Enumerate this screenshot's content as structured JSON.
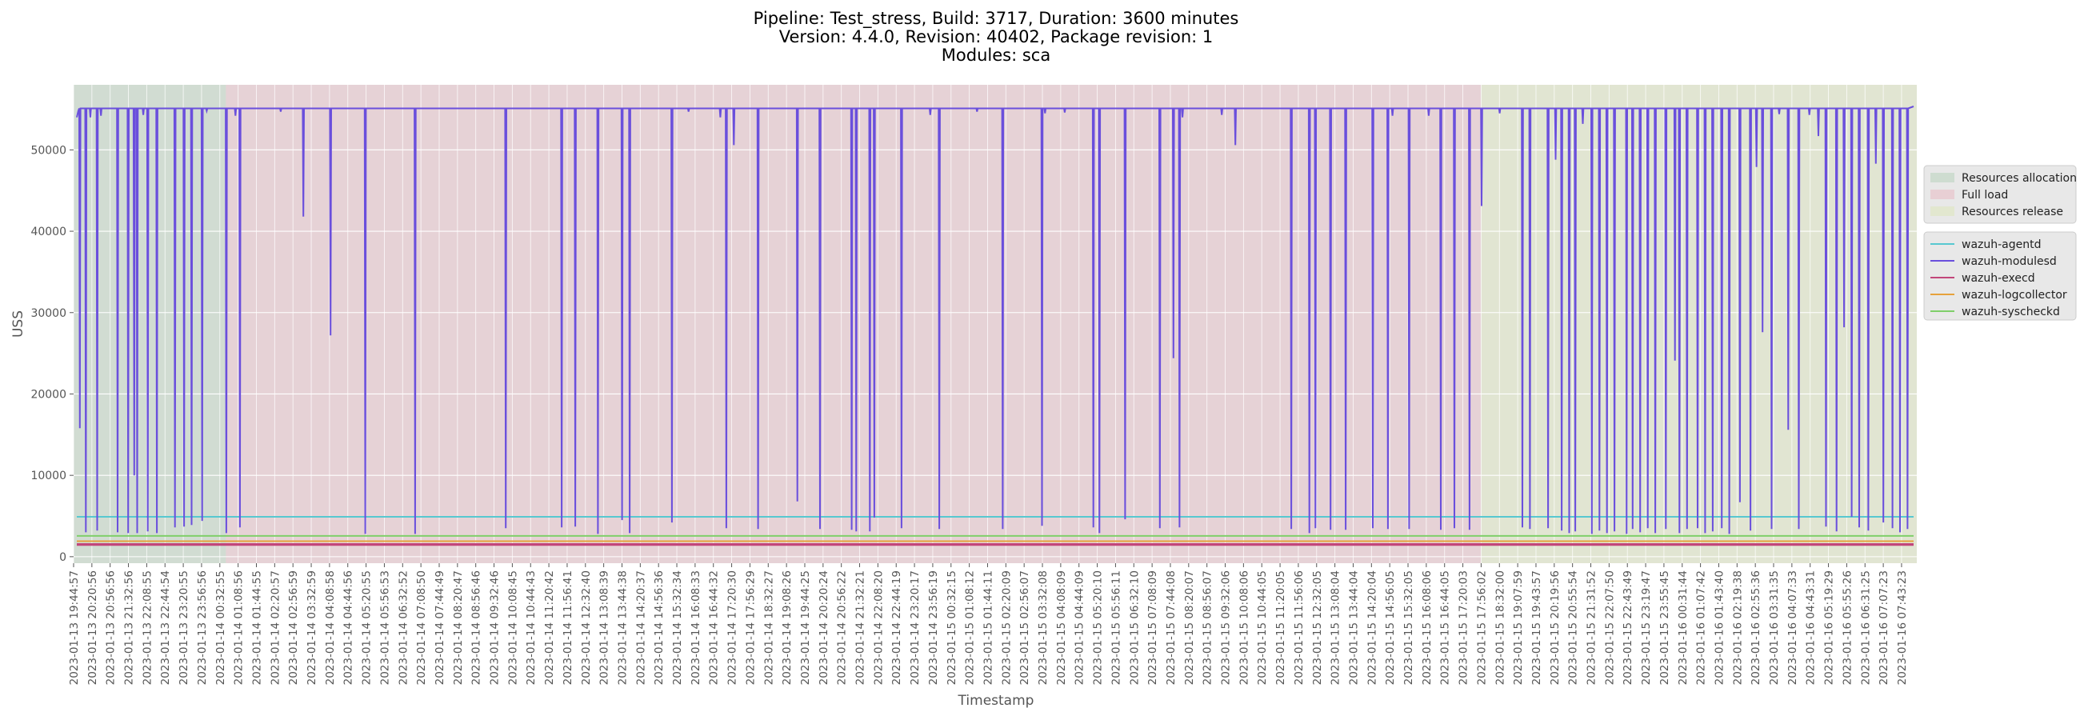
{
  "chart_data": {
    "type": "line",
    "title_lines": [
      "Pipeline: Test_stress, Build: 3717, Duration: 3600 minutes",
      "Version: 4.4.0, Revision: 40402, Package revision: 1",
      "Modules: sca"
    ],
    "xlabel": "Timestamp",
    "ylabel": "USS",
    "ylim": [
      -800,
      58000
    ],
    "yticks": [
      0,
      10000,
      20000,
      30000,
      40000,
      50000
    ],
    "grid": true,
    "legend_position": "right-outside",
    "x_tick_labels": [
      "2023-01-13 19:44:57",
      "2023-01-13 20:20:56",
      "2023-01-13 20:56:56",
      "2023-01-13 21:32:56",
      "2023-01-13 22:08:55",
      "2023-01-13 22:44:54",
      "2023-01-13 23:20:55",
      "2023-01-13 23:56:56",
      "2023-01-14 00:32:55",
      "2023-01-14 01:08:56",
      "2023-01-14 01:44:55",
      "2023-01-14 02:20:57",
      "2023-01-14 02:56:59",
      "2023-01-14 03:32:59",
      "2023-01-14 04:08:58",
      "2023-01-14 04:44:56",
      "2023-01-14 05:20:55",
      "2023-01-14 05:56:53",
      "2023-01-14 06:32:52",
      "2023-01-14 07:08:50",
      "2023-01-14 07:44:49",
      "2023-01-14 08:20:47",
      "2023-01-14 08:56:46",
      "2023-01-14 09:32:46",
      "2023-01-14 10:08:45",
      "2023-01-14 10:44:43",
      "2023-01-14 11:20:42",
      "2023-01-14 11:56:41",
      "2023-01-14 12:32:40",
      "2023-01-14 13:08:39",
      "2023-01-14 13:44:38",
      "2023-01-14 14:20:37",
      "2023-01-14 14:56:36",
      "2023-01-14 15:32:34",
      "2023-01-14 16:08:33",
      "2023-01-14 16:44:32",
      "2023-01-14 17:20:30",
      "2023-01-14 17:56:29",
      "2023-01-14 18:32:27",
      "2023-01-14 19:08:26",
      "2023-01-14 19:44:25",
      "2023-01-14 20:20:24",
      "2023-01-14 20:56:22",
      "2023-01-14 21:32:21",
      "2023-01-14 22:08:20",
      "2023-01-14 22:44:19",
      "2023-01-14 23:20:17",
      "2023-01-14 23:56:19",
      "2023-01-15 00:32:15",
      "2023-01-15 01:08:12",
      "2023-01-15 01:44:11",
      "2023-01-15 02:20:09",
      "2023-01-15 02:56:07",
      "2023-01-15 03:32:08",
      "2023-01-15 04:08:09",
      "2023-01-15 04:44:09",
      "2023-01-15 05:20:10",
      "2023-01-15 05:56:11",
      "2023-01-15 06:32:10",
      "2023-01-15 07:08:09",
      "2023-01-15 07:44:08",
      "2023-01-15 08:20:07",
      "2023-01-15 08:56:07",
      "2023-01-15 09:32:06",
      "2023-01-15 10:08:06",
      "2023-01-15 10:44:05",
      "2023-01-15 11:20:05",
      "2023-01-15 11:56:06",
      "2023-01-15 12:32:05",
      "2023-01-15 13:08:04",
      "2023-01-15 13:44:04",
      "2023-01-15 14:20:04",
      "2023-01-15 14:56:05",
      "2023-01-15 15:32:05",
      "2023-01-15 16:08:06",
      "2023-01-15 16:44:05",
      "2023-01-15 17:20:03",
      "2023-01-15 17:56:02",
      "2023-01-15 18:32:00",
      "2023-01-15 19:07:59",
      "2023-01-15 19:43:57",
      "2023-01-15 20:19:56",
      "2023-01-15 20:55:54",
      "2023-01-15 21:31:52",
      "2023-01-15 22:07:50",
      "2023-01-15 22:43:49",
      "2023-01-15 23:19:47",
      "2023-01-15 23:55:45",
      "2023-01-16 00:31:44",
      "2023-01-16 01:07:42",
      "2023-01-16 01:43:40",
      "2023-01-16 02:19:38",
      "2023-01-16 02:55:36",
      "2023-01-16 03:31:35",
      "2023-01-16 04:07:33",
      "2023-01-16 04:43:31",
      "2023-01-16 05:19:29",
      "2023-01-16 05:55:26",
      "2023-01-16 06:31:25",
      "2023-01-16 07:07:23",
      "2023-01-16 07:43:23"
    ],
    "phases": [
      {
        "name": "Resources allocation",
        "start_index": 0,
        "end_index": 10,
        "color": "#9fc5a3"
      },
      {
        "name": "Full load",
        "start_index": 10,
        "end_index": 80,
        "color": "#e8a0b0"
      },
      {
        "name": "Resources release",
        "start_index": 80,
        "end_index": 100,
        "color": "#d8e6a0"
      }
    ],
    "series": [
      {
        "name": "wazuh-agentd",
        "color": "#57c8d0",
        "baseline": 4900
      },
      {
        "name": "wazuh-modulesd",
        "color": "#6a4fdc",
        "baseline": 55100,
        "dips": [
          {
            "x": 0.2,
            "y": 15800
          },
          {
            "x": 0.6,
            "y": 3000
          },
          {
            "x": 0.9,
            "y": 54000
          },
          {
            "x": 1.35,
            "y": 3200
          },
          {
            "x": 1.6,
            "y": 54200
          },
          {
            "x": 2.7,
            "y": 3000
          },
          {
            "x": 3.4,
            "y": 2900
          },
          {
            "x": 3.8,
            "y": 10000
          },
          {
            "x": 4.0,
            "y": 2900
          },
          {
            "x": 4.4,
            "y": 54300
          },
          {
            "x": 4.7,
            "y": 3100
          },
          {
            "x": 5.3,
            "y": 2900
          },
          {
            "x": 6.5,
            "y": 3600
          },
          {
            "x": 7.1,
            "y": 3700
          },
          {
            "x": 7.6,
            "y": 3900
          },
          {
            "x": 8.3,
            "y": 4400
          },
          {
            "x": 8.6,
            "y": 54800
          },
          {
            "x": 9.9,
            "y": 2900
          },
          {
            "x": 10.5,
            "y": 54200
          },
          {
            "x": 10.8,
            "y": 3600
          },
          {
            "x": 13.5,
            "y": 54700
          },
          {
            "x": 15.0,
            "y": 41800
          },
          {
            "x": 16.8,
            "y": 27200
          },
          {
            "x": 19.1,
            "y": 2800
          },
          {
            "x": 22.4,
            "y": 2800
          },
          {
            "x": 28.4,
            "y": 3500
          },
          {
            "x": 32.1,
            "y": 3600
          },
          {
            "x": 33.0,
            "y": 3700
          },
          {
            "x": 34.5,
            "y": 2800
          },
          {
            "x": 36.1,
            "y": 4500
          },
          {
            "x": 36.6,
            "y": 2900
          },
          {
            "x": 39.4,
            "y": 4200
          },
          {
            "x": 40.5,
            "y": 54700
          },
          {
            "x": 42.6,
            "y": 54000
          },
          {
            "x": 43.0,
            "y": 3500
          },
          {
            "x": 43.5,
            "y": 50600
          },
          {
            "x": 45.1,
            "y": 3400
          },
          {
            "x": 47.7,
            "y": 6800
          },
          {
            "x": 49.2,
            "y": 3400
          },
          {
            "x": 51.3,
            "y": 3300
          },
          {
            "x": 51.6,
            "y": 3100
          },
          {
            "x": 52.5,
            "y": 3100
          },
          {
            "x": 52.8,
            "y": 4800
          },
          {
            "x": 54.6,
            "y": 3500
          },
          {
            "x": 56.5,
            "y": 54300
          },
          {
            "x": 57.1,
            "y": 3400
          },
          {
            "x": 59.6,
            "y": 54700
          },
          {
            "x": 61.3,
            "y": 3400
          },
          {
            "x": 63.9,
            "y": 3800
          },
          {
            "x": 64.1,
            "y": 54500
          },
          {
            "x": 65.4,
            "y": 54600
          },
          {
            "x": 67.3,
            "y": 3600
          },
          {
            "x": 67.7,
            "y": 2900
          },
          {
            "x": 69.4,
            "y": 4600
          },
          {
            "x": 71.7,
            "y": 3500
          },
          {
            "x": 72.6,
            "y": 24400
          },
          {
            "x": 73.0,
            "y": 3600
          },
          {
            "x": 73.2,
            "y": 54000
          },
          {
            "x": 75.8,
            "y": 54300
          },
          {
            "x": 76.7,
            "y": 50600
          },
          {
            "x": 80.4,
            "y": 3400
          },
          {
            "x": 81.6,
            "y": 2900
          },
          {
            "x": 82.0,
            "y": 3500
          },
          {
            "x": 83.0,
            "y": 3300
          },
          {
            "x": 84.0,
            "y": 3300
          },
          {
            "x": 85.8,
            "y": 3500
          },
          {
            "x": 86.8,
            "y": 3400
          },
          {
            "x": 87.1,
            "y": 54200
          },
          {
            "x": 88.2,
            "y": 3400
          },
          {
            "x": 89.5,
            "y": 54200
          },
          {
            "x": 90.3,
            "y": 3300
          },
          {
            "x": 91.2,
            "y": 3500
          },
          {
            "x": 92.2,
            "y": 3300
          },
          {
            "x": 93.0,
            "y": 43100
          },
          {
            "x": 94.2,
            "y": 54500
          },
          {
            "x": 95.7,
            "y": 3600
          },
          {
            "x": 96.2,
            "y": 3400
          },
          {
            "x": 97.4,
            "y": 3500
          },
          {
            "x": 97.9,
            "y": 48800
          },
          {
            "x": 98.3,
            "y": 3200
          },
          {
            "x": 98.8,
            "y": 2900
          },
          {
            "x": 99.2,
            "y": 3100
          },
          {
            "x": 99.7,
            "y": 53200
          },
          {
            "x": 100.3,
            "y": 2800
          },
          {
            "x": 100.8,
            "y": 3200
          },
          {
            "x": 101.3,
            "y": 2900
          },
          {
            "x": 101.8,
            "y": 3100
          },
          {
            "x": 102.6,
            "y": 2800
          },
          {
            "x": 103.0,
            "y": 3400
          },
          {
            "x": 103.5,
            "y": 3000
          },
          {
            "x": 104.0,
            "y": 3500
          },
          {
            "x": 104.5,
            "y": 2900
          },
          {
            "x": 105.2,
            "y": 3400
          },
          {
            "x": 105.8,
            "y": 24100
          },
          {
            "x": 106.1,
            "y": 2900
          },
          {
            "x": 106.6,
            "y": 3400
          },
          {
            "x": 107.3,
            "y": 3500
          },
          {
            "x": 107.8,
            "y": 2900
          },
          {
            "x": 108.3,
            "y": 3100
          },
          {
            "x": 108.9,
            "y": 3500
          },
          {
            "x": 109.4,
            "y": 2800
          },
          {
            "x": 110.1,
            "y": 6700
          },
          {
            "x": 110.8,
            "y": 3200
          },
          {
            "x": 111.2,
            "y": 47900
          },
          {
            "x": 111.6,
            "y": 27600
          },
          {
            "x": 112.2,
            "y": 3400
          },
          {
            "x": 112.7,
            "y": 54400
          },
          {
            "x": 113.3,
            "y": 15600
          },
          {
            "x": 114.0,
            "y": 3400
          },
          {
            "x": 114.7,
            "y": 54300
          },
          {
            "x": 115.3,
            "y": 51700
          },
          {
            "x": 115.8,
            "y": 3700
          },
          {
            "x": 116.5,
            "y": 3100
          },
          {
            "x": 117.0,
            "y": 28200
          },
          {
            "x": 117.5,
            "y": 4900
          },
          {
            "x": 118.0,
            "y": 3600
          },
          {
            "x": 118.6,
            "y": 3200
          },
          {
            "x": 119.1,
            "y": 48300
          },
          {
            "x": 119.6,
            "y": 4200
          },
          {
            "x": 120.2,
            "y": 3500
          },
          {
            "x": 120.7,
            "y": 3000
          },
          {
            "x": 121.2,
            "y": 3400
          }
        ]
      },
      {
        "name": "wazuh-execd",
        "color": "#c2467a",
        "baseline": 1500
      },
      {
        "name": "wazuh-logcollector",
        "color": "#e6a23c",
        "baseline": 1900
      },
      {
        "name": "wazuh-syscheckd",
        "color": "#7fcf6a",
        "baseline": 2550
      }
    ]
  }
}
